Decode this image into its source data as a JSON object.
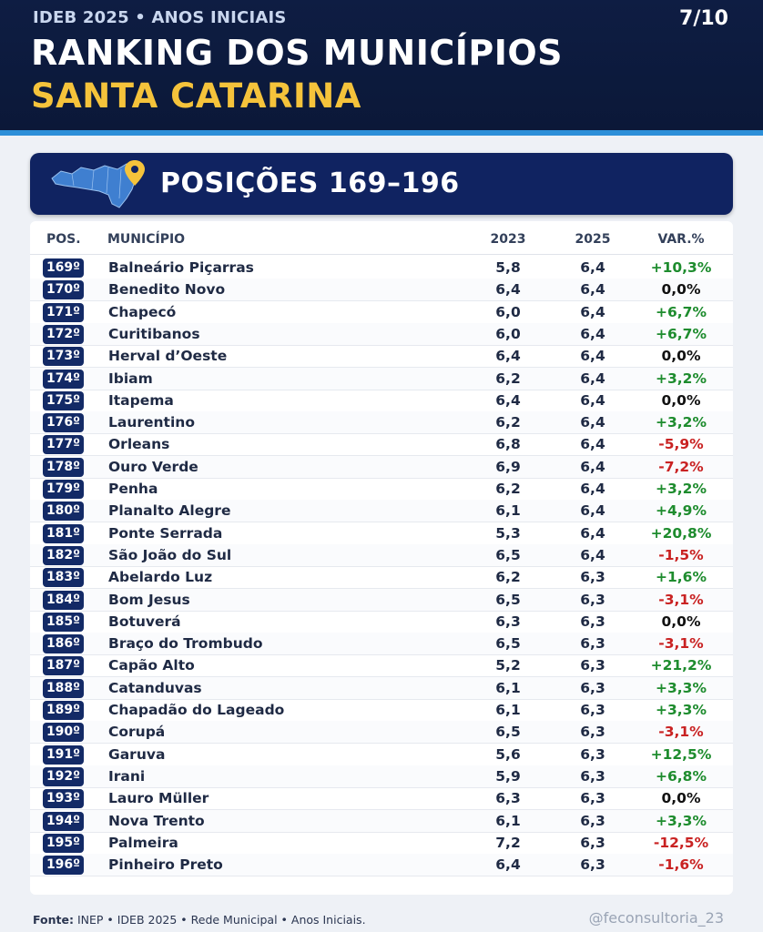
{
  "header": {
    "kicker": "IDEB 2025 • ANOS INICIAIS",
    "page_counter": "7/10",
    "title": "RANKING DOS MUNICÍPIOS",
    "subtitle": "SANTA CATARINA"
  },
  "banner": {
    "title": "POSIÇÕES 169–196",
    "icon": "santa-catarina-map-pin-icon"
  },
  "table": {
    "columns": {
      "pos": "POS.",
      "municipio": "MUNICÍPIO",
      "y2023": "2023",
      "y2025": "2025",
      "var": "VAR.%"
    },
    "rows": [
      {
        "pos": "169º",
        "municipio": "Balneário Piçarras",
        "y2023": "5,8",
        "y2025": "6,4",
        "var": "+10,3%"
      },
      {
        "pos": "170º",
        "municipio": "Benedito Novo",
        "y2023": "6,4",
        "y2025": "6,4",
        "var": "0,0%"
      },
      {
        "pos": "171º",
        "municipio": "Chapecó",
        "y2023": "6,0",
        "y2025": "6,4",
        "var": "+6,7%"
      },
      {
        "pos": "172º",
        "municipio": "Curitibanos",
        "y2023": "6,0",
        "y2025": "6,4",
        "var": "+6,7%"
      },
      {
        "pos": "173º",
        "municipio": "Herval d’Oeste",
        "y2023": "6,4",
        "y2025": "6,4",
        "var": "0,0%"
      },
      {
        "pos": "174º",
        "municipio": "Ibiam",
        "y2023": "6,2",
        "y2025": "6,4",
        "var": "+3,2%"
      },
      {
        "pos": "175º",
        "municipio": "Itapema",
        "y2023": "6,4",
        "y2025": "6,4",
        "var": "0,0%"
      },
      {
        "pos": "176º",
        "municipio": "Laurentino",
        "y2023": "6,2",
        "y2025": "6,4",
        "var": "+3,2%"
      },
      {
        "pos": "177º",
        "municipio": "Orleans",
        "y2023": "6,8",
        "y2025": "6,4",
        "var": "-5,9%"
      },
      {
        "pos": "178º",
        "municipio": "Ouro Verde",
        "y2023": "6,9",
        "y2025": "6,4",
        "var": "-7,2%"
      },
      {
        "pos": "179º",
        "municipio": "Penha",
        "y2023": "6,2",
        "y2025": "6,4",
        "var": "+3,2%"
      },
      {
        "pos": "180º",
        "municipio": "Planalto Alegre",
        "y2023": "6,1",
        "y2025": "6,4",
        "var": "+4,9%"
      },
      {
        "pos": "181º",
        "municipio": "Ponte Serrada",
        "y2023": "5,3",
        "y2025": "6,4",
        "var": "+20,8%"
      },
      {
        "pos": "182º",
        "municipio": "São João do Sul",
        "y2023": "6,5",
        "y2025": "6,4",
        "var": "-1,5%"
      },
      {
        "pos": "183º",
        "municipio": "Abelardo Luz",
        "y2023": "6,2",
        "y2025": "6,3",
        "var": "+1,6%"
      },
      {
        "pos": "184º",
        "municipio": "Bom Jesus",
        "y2023": "6,5",
        "y2025": "6,3",
        "var": "-3,1%"
      },
      {
        "pos": "185º",
        "municipio": "Botuverá",
        "y2023": "6,3",
        "y2025": "6,3",
        "var": "0,0%"
      },
      {
        "pos": "186º",
        "municipio": "Braço do Trombudo",
        "y2023": "6,5",
        "y2025": "6,3",
        "var": "-3,1%"
      },
      {
        "pos": "187º",
        "municipio": "Capão Alto",
        "y2023": "5,2",
        "y2025": "6,3",
        "var": "+21,2%"
      },
      {
        "pos": "188º",
        "municipio": "Catanduvas",
        "y2023": "6,1",
        "y2025": "6,3",
        "var": "+3,3%"
      },
      {
        "pos": "189º",
        "municipio": "Chapadão do Lageado",
        "y2023": "6,1",
        "y2025": "6,3",
        "var": "+3,3%"
      },
      {
        "pos": "190º",
        "municipio": "Corupá",
        "y2023": "6,5",
        "y2025": "6,3",
        "var": "-3,1%"
      },
      {
        "pos": "191º",
        "municipio": "Garuva",
        "y2023": "5,6",
        "y2025": "6,3",
        "var": "+12,5%"
      },
      {
        "pos": "192º",
        "municipio": "Irani",
        "y2023": "5,9",
        "y2025": "6,3",
        "var": "+6,8%"
      },
      {
        "pos": "193º",
        "municipio": "Lauro Müller",
        "y2023": "6,3",
        "y2025": "6,3",
        "var": "0,0%"
      },
      {
        "pos": "194º",
        "municipio": "Nova Trento",
        "y2023": "6,1",
        "y2025": "6,3",
        "var": "+3,3%"
      },
      {
        "pos": "195º",
        "municipio": "Palmeira",
        "y2023": "7,2",
        "y2025": "6,3",
        "var": "-12,5%"
      },
      {
        "pos": "196º",
        "municipio": "Pinheiro Preto",
        "y2023": "6,4",
        "y2025": "6,3",
        "var": "-1,6%"
      }
    ]
  },
  "footer": {
    "source_label": "Fonte:",
    "source_text": " INEP • IDEB 2025 • Rede Municipal • Anos Iniciais.",
    "handle": "@feconsultoria_23"
  },
  "colors": {
    "header_bg": "#0e1d43",
    "accent_yellow": "#f5c33b",
    "stripe_blue": "#2d8fd8",
    "banner_bg": "#102361",
    "positive": "#1e8c2e",
    "negative": "#c92222"
  }
}
